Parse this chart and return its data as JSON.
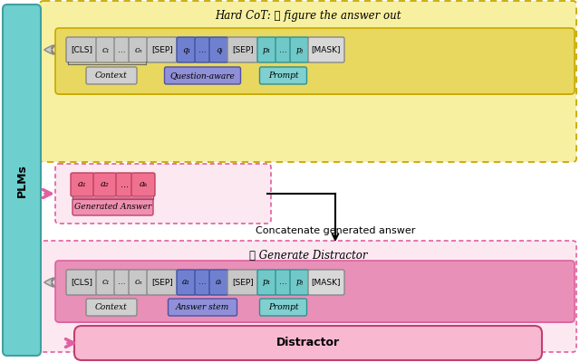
{
  "fig_width": 6.4,
  "fig_height": 4.0,
  "bg_color": "#ffffff",
  "plm_color": "#6ecfcf",
  "plm_label": "PLMs",
  "top_title": "Hard CoT: ① figure the answer out",
  "concat_label": "Concatenate generated answer",
  "dist_title": "② Generate Distractor",
  "distractor_label": "Distractor",
  "gen_answer_label": "Generated Answer",
  "yellow_face": "#f7f0a0",
  "yellow_bar_face": "#d4c840",
  "yellow_edge": "#c8a800",
  "pink_face": "#fce8f0",
  "pink_bar_face": "#f0a0c0",
  "pink_edge": "#e060a0",
  "gray_tok_face": "#c8c8c8",
  "gray_tok_edge": "#888888",
  "blue_tok_face": "#7080d0",
  "blue_tok_edge": "#4050a0",
  "teal_tok_face": "#70c8c8",
  "teal_tok_edge": "#309090",
  "pink_tok_face": "#f07090",
  "pink_tok_edge": "#c04060",
  "sep_face": "#c8c8c8",
  "sep_edge": "#888888",
  "mask_face": "#d8d8d8",
  "mask_edge": "#888888",
  "ctx_lbl_face": "#d0d0d0",
  "ctx_lbl_edge": "#888888",
  "qa_lbl_face": "#9090d8",
  "qa_lbl_edge": "#5050a0",
  "teal_lbl_face": "#80d0d0",
  "teal_lbl_edge": "#309090",
  "pink_lbl_face": "#f090b0",
  "pink_lbl_edge": "#c04070",
  "dist_out_face": "#f8b8d0",
  "dist_out_edge": "#c04070"
}
